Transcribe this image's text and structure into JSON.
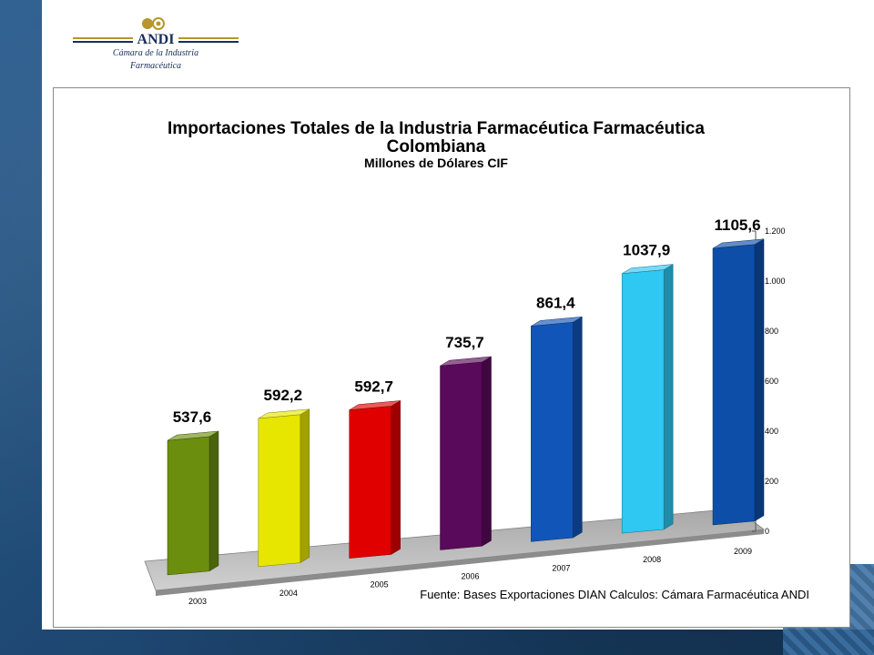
{
  "logo": {
    "brand": "ANDI",
    "caption_line1": "Cámara de la Industria",
    "caption_line2": "Farmacéutica"
  },
  "chart_data": {
    "type": "bar",
    "title": "Importaciones Totales de la Industria Farmacéutica Farmacéutica Colombiana",
    "subtitle": "Millones de Dólares CIF",
    "categories": [
      "2003",
      "2004",
      "2005",
      "2006",
      "2007",
      "2008",
      "2009"
    ],
    "values": [
      537.6,
      592.2,
      592.7,
      735.7,
      861.4,
      1037.9,
      1105.6
    ],
    "value_labels": [
      "537,6",
      "592,2",
      "592,7",
      "735,7",
      "861,4",
      "1037,9",
      "1105,6"
    ],
    "bar_colors": [
      "#6b8e0e",
      "#e6e600",
      "#e00000",
      "#5a0a5a",
      "#1255b8",
      "#2ec8f2",
      "#0d4ea8"
    ],
    "y_ticks": [
      0,
      200,
      400,
      600,
      800,
      1000,
      1200
    ],
    "y_tick_labels": [
      "0",
      "200",
      "400",
      "600",
      "800",
      "1.000",
      "1.200"
    ],
    "ylim": [
      0,
      1200
    ],
    "source": "Fuente:  Bases Exportaciones DIAN Calculos: Cámara Farmacéutica ANDI",
    "grid": false,
    "legend": "none"
  }
}
